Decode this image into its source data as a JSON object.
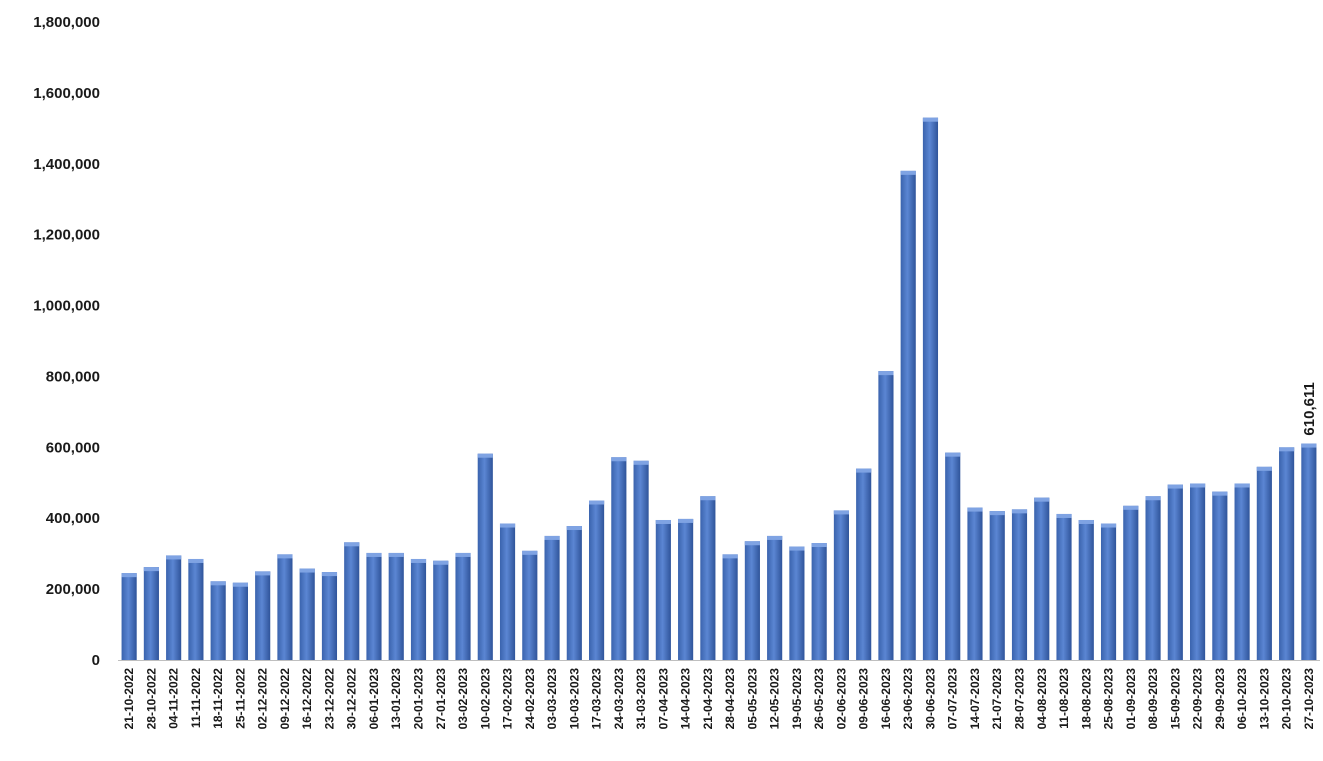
{
  "chart_data": {
    "type": "bar",
    "title": "",
    "xlabel": "",
    "ylabel": "",
    "ylim": [
      0,
      1800000
    ],
    "yticks": [
      0,
      200000,
      400000,
      600000,
      800000,
      1000000,
      1200000,
      1400000,
      1600000,
      1800000
    ],
    "ytick_labels": [
      "0",
      "200,000",
      "400,000",
      "600,000",
      "800,000",
      "1,000,000",
      "1,200,000",
      "1,400,000",
      "1,600,000",
      "1,800,000"
    ],
    "grid": false,
    "bar_color": "#4472C4",
    "categories": [
      "21-10-2022",
      "28-10-2022",
      "04-11-2022",
      "11-11-2022",
      "18-11-2022",
      "25-11-2022",
      "02-12-2022",
      "09-12-2022",
      "16-12-2022",
      "23-12-2022",
      "30-12-2022",
      "06-01-2023",
      "13-01-2023",
      "20-01-2023",
      "27-01-2023",
      "03-02-2023",
      "10-02-2023",
      "17-02-2023",
      "24-02-2023",
      "03-03-2023",
      "10-03-2023",
      "17-03-2023",
      "24-03-2023",
      "31-03-2023",
      "07-04-2023",
      "14-04-2023",
      "21-04-2023",
      "28-04-2023",
      "05-05-2023",
      "12-05-2023",
      "19-05-2023",
      "26-05-2023",
      "02-06-2023",
      "09-06-2023",
      "16-06-2023",
      "23-06-2023",
      "30-06-2023",
      "07-07-2023",
      "14-07-2023",
      "21-07-2023",
      "28-07-2023",
      "04-08-2023",
      "11-08-2023",
      "18-08-2023",
      "25-08-2023",
      "01-09-2023",
      "08-09-2023",
      "15-09-2023",
      "22-09-2023",
      "29-09-2023",
      "06-10-2023",
      "13-10-2023",
      "20-10-2023",
      "27-10-2023"
    ],
    "values": [
      245000,
      262000,
      295000,
      285000,
      222000,
      218000,
      250000,
      298000,
      258000,
      248000,
      332000,
      302000,
      302000,
      285000,
      280000,
      302000,
      582000,
      385000,
      308000,
      350000,
      378000,
      450000,
      572000,
      562000,
      395000,
      398000,
      462000,
      298000,
      335000,
      350000,
      320000,
      330000,
      422000,
      540000,
      815000,
      1380000,
      1530000,
      585000,
      430000,
      420000,
      425000,
      458000,
      412000,
      395000,
      385000,
      435000,
      462000,
      495000,
      498000,
      475000,
      498000,
      545000,
      600000,
      610611
    ],
    "data_labels": [
      {
        "category": "27-10-2023",
        "text": "610,611"
      }
    ]
  }
}
